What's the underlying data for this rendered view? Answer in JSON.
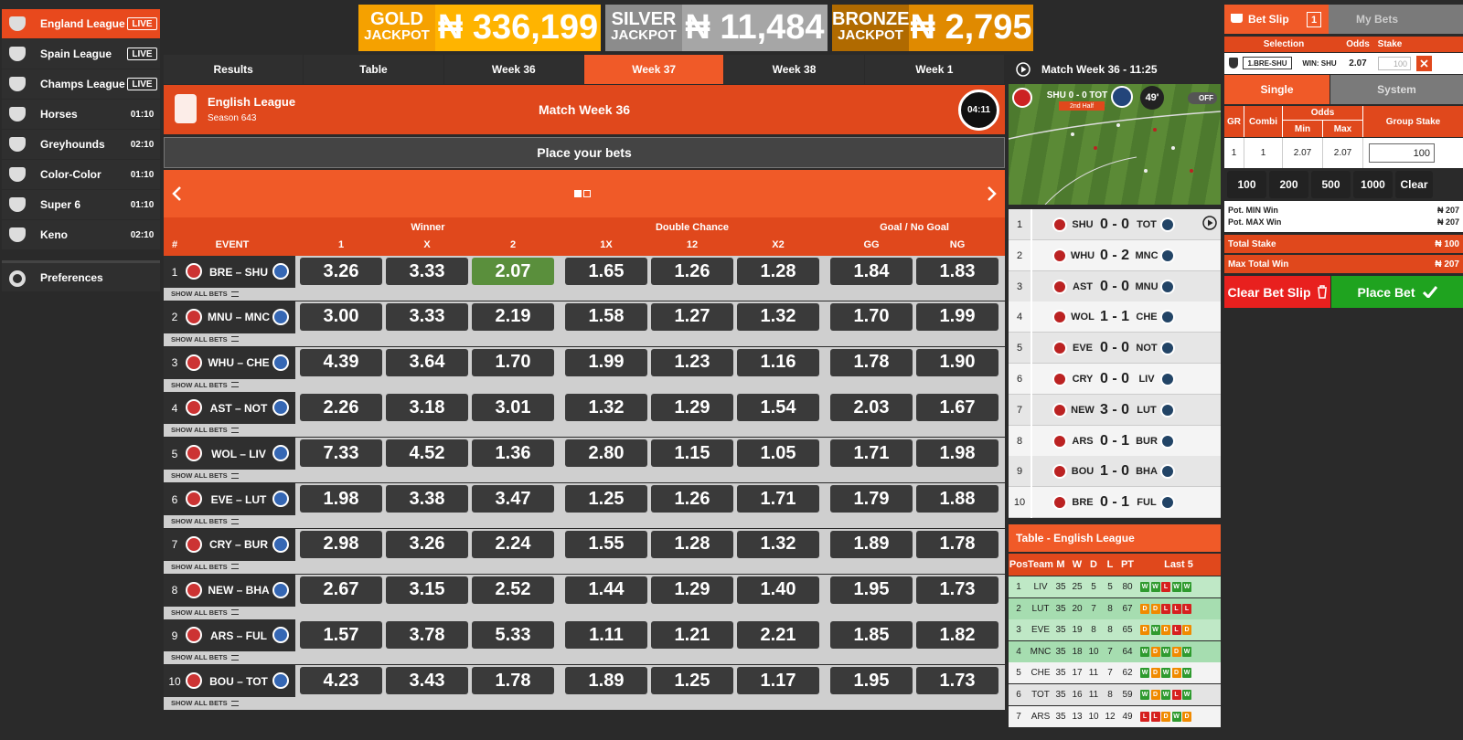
{
  "sidebar": {
    "active": 0,
    "items": [
      {
        "name": "England League",
        "badge": "LIVE"
      },
      {
        "name": "Spain League",
        "badge": "LIVE"
      },
      {
        "name": "Champs League",
        "badge": "LIVE"
      },
      {
        "name": "Horses",
        "badge": "01:10"
      },
      {
        "name": "Greyhounds",
        "badge": "02:10"
      },
      {
        "name": "Color-Color",
        "badge": "01:10"
      },
      {
        "name": "Super 6",
        "badge": "01:10"
      },
      {
        "name": "Keno",
        "badge": "02:10"
      }
    ],
    "preferences": "Preferences"
  },
  "jackpots": [
    {
      "tier": "GOLD",
      "label": "JACKPOT",
      "amount": "₦ 336,199"
    },
    {
      "tier": "SILVER",
      "label": "JACKPOT",
      "amount": "₦ 11,484"
    },
    {
      "tier": "BRONZE",
      "label": "JACKPOT",
      "amount": "₦ 2,795"
    }
  ],
  "tabs": {
    "active": 3,
    "items": [
      "Results",
      "Table",
      "Week 36",
      "Week 37",
      "Week 38",
      "Week 1"
    ]
  },
  "match_header": {
    "league": "English League",
    "season": "Season 643",
    "title": "Match Week 36",
    "timer": "04:11",
    "place_bets": "Place your bets"
  },
  "odds_table": {
    "groups": [
      "Winner",
      "Double Chance",
      "Goal / No Goal"
    ],
    "number_header": "#",
    "event_header": "EVENT",
    "columns": [
      "1",
      "X",
      "2",
      "1X",
      "12",
      "X2",
      "GG",
      "NG"
    ],
    "show_all_label": "SHOW ALL BETS",
    "selected": [
      0,
      2
    ],
    "rows": [
      {
        "num": "1",
        "event": "BRE – SHU",
        "odds": [
          "3.26",
          "3.33",
          "2.07",
          "1.65",
          "1.26",
          "1.28",
          "1.84",
          "1.83"
        ]
      },
      {
        "num": "2",
        "event": "MNU – MNC",
        "odds": [
          "3.00",
          "3.33",
          "2.19",
          "1.58",
          "1.27",
          "1.32",
          "1.70",
          "1.99"
        ]
      },
      {
        "num": "3",
        "event": "WHU – CHE",
        "odds": [
          "4.39",
          "3.64",
          "1.70",
          "1.99",
          "1.23",
          "1.16",
          "1.78",
          "1.90"
        ]
      },
      {
        "num": "4",
        "event": "AST – NOT",
        "odds": [
          "2.26",
          "3.18",
          "3.01",
          "1.32",
          "1.29",
          "1.54",
          "2.03",
          "1.67"
        ]
      },
      {
        "num": "5",
        "event": "WOL – LIV",
        "odds": [
          "7.33",
          "4.52",
          "1.36",
          "2.80",
          "1.15",
          "1.05",
          "1.71",
          "1.98"
        ]
      },
      {
        "num": "6",
        "event": "EVE – LUT",
        "odds": [
          "1.98",
          "3.38",
          "3.47",
          "1.25",
          "1.26",
          "1.71",
          "1.79",
          "1.88"
        ]
      },
      {
        "num": "7",
        "event": "CRY – BUR",
        "odds": [
          "2.98",
          "3.26",
          "2.24",
          "1.55",
          "1.28",
          "1.32",
          "1.89",
          "1.78"
        ]
      },
      {
        "num": "8",
        "event": "NEW – BHA",
        "odds": [
          "2.67",
          "3.15",
          "2.52",
          "1.44",
          "1.29",
          "1.40",
          "1.95",
          "1.73"
        ]
      },
      {
        "num": "9",
        "event": "ARS – FUL",
        "odds": [
          "1.57",
          "3.78",
          "5.33",
          "1.11",
          "1.21",
          "2.21",
          "1.85",
          "1.82"
        ]
      },
      {
        "num": "10",
        "event": "BOU – TOT",
        "odds": [
          "4.23",
          "3.43",
          "1.78",
          "1.89",
          "1.25",
          "1.17",
          "1.95",
          "1.73"
        ]
      }
    ]
  },
  "live": {
    "title": "Match Week 36 - 11:25",
    "score": "SHU 0 - 0 TOT",
    "period": "2nd Half",
    "minute": "49'",
    "toggle": "OFF",
    "results": [
      {
        "num": "1",
        "home": "SHU",
        "score": "0 - 0",
        "away": "TOT"
      },
      {
        "num": "2",
        "home": "WHU",
        "score": "0 - 2",
        "away": "MNC"
      },
      {
        "num": "3",
        "home": "AST",
        "score": "0 - 0",
        "away": "MNU"
      },
      {
        "num": "4",
        "home": "WOL",
        "score": "1 - 1",
        "away": "CHE"
      },
      {
        "num": "5",
        "home": "EVE",
        "score": "0 - 0",
        "away": "NOT"
      },
      {
        "num": "6",
        "home": "CRY",
        "score": "0 - 0",
        "away": "LIV"
      },
      {
        "num": "7",
        "home": "NEW",
        "score": "3 - 0",
        "away": "LUT"
      },
      {
        "num": "8",
        "home": "ARS",
        "score": "0 - 1",
        "away": "BUR"
      },
      {
        "num": "9",
        "home": "BOU",
        "score": "1 - 0",
        "away": "BHA"
      },
      {
        "num": "10",
        "home": "BRE",
        "score": "0 - 1",
        "away": "FUL"
      }
    ]
  },
  "league_table": {
    "title": "Table - English League",
    "headers": [
      "Pos",
      "Team",
      "M",
      "W",
      "D",
      "L",
      "PT",
      "Last 5"
    ],
    "rows": [
      {
        "cells": [
          "1",
          "LIV",
          "35",
          "25",
          "5",
          "5",
          "80"
        ],
        "last5": [
          "W",
          "W",
          "L",
          "W",
          "W"
        ]
      },
      {
        "cells": [
          "2",
          "LUT",
          "35",
          "20",
          "7",
          "8",
          "67"
        ],
        "last5": [
          "D",
          "D",
          "L",
          "L",
          "L"
        ]
      },
      {
        "cells": [
          "3",
          "EVE",
          "35",
          "19",
          "8",
          "8",
          "65"
        ],
        "last5": [
          "D",
          "W",
          "D",
          "L",
          "D"
        ]
      },
      {
        "cells": [
          "4",
          "MNC",
          "35",
          "18",
          "10",
          "7",
          "64"
        ],
        "last5": [
          "W",
          "D",
          "W",
          "D",
          "W"
        ]
      },
      {
        "cells": [
          "5",
          "CHE",
          "35",
          "17",
          "11",
          "7",
          "62"
        ],
        "last5": [
          "W",
          "D",
          "W",
          "D",
          "W"
        ]
      },
      {
        "cells": [
          "6",
          "TOT",
          "35",
          "16",
          "11",
          "8",
          "59"
        ],
        "last5": [
          "W",
          "D",
          "W",
          "L",
          "W"
        ]
      },
      {
        "cells": [
          "7",
          "ARS",
          "35",
          "13",
          "10",
          "12",
          "49"
        ],
        "last5": [
          "L",
          "L",
          "D",
          "W",
          "D"
        ]
      }
    ]
  },
  "bet_slip": {
    "tab": "Bet Slip",
    "count": "1",
    "my_bets": "My Bets",
    "headers": [
      "Selection",
      "Odds",
      "Stake"
    ],
    "selection": {
      "event": "1.BRE-SHU",
      "pick": "WIN: SHU",
      "odds": "2.07",
      "stake": "100"
    },
    "modes": [
      "Single",
      "System"
    ],
    "active_mode": 0,
    "group_headers": {
      "gr": "GR",
      "combi": "Combi",
      "odds": "Odds",
      "min": "Min",
      "max": "Max",
      "stake": "Group Stake"
    },
    "group_row": {
      "gr": "1",
      "combi": "1",
      "min": "2.07",
      "max": "2.07",
      "stake": "100"
    },
    "quick_stakes": [
      "100",
      "200",
      "500",
      "1000"
    ],
    "clear": "Clear",
    "pot_min": {
      "label": "Pot. MIN Win",
      "value": "₦ 207"
    },
    "pot_max": {
      "label": "Pot. MAX Win",
      "value": "₦ 207"
    },
    "total_stake": {
      "label": "Total Stake",
      "value": "₦ 100"
    },
    "max_total_win": {
      "label": "Max Total Win",
      "value": "₦ 207"
    },
    "clear_slip": "Clear Bet Slip",
    "place_bet": "Place Bet"
  }
}
